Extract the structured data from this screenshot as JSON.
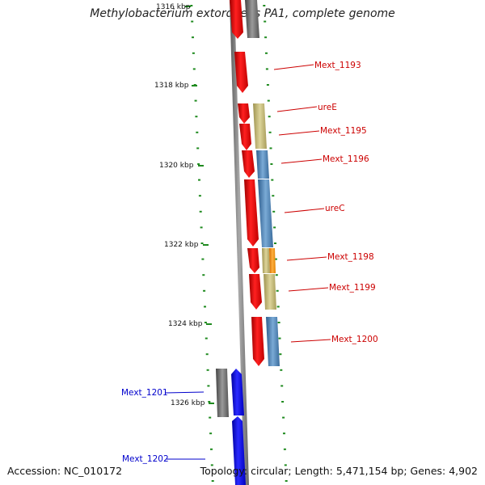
{
  "title": "Methylobacterium extorquens PA1, complete genome",
  "footer": {
    "accession": "Accession: NC_010172",
    "topology": "Topology: circular; Length: 5,471,154 bp; Genes: 4,902"
  },
  "ticks": [
    "1316 kbp",
    "1318 kbp",
    "1320 kbp",
    "1322 kbp",
    "1324 kbp",
    "1326 kbp"
  ],
  "colors": {
    "backbone": "#808080",
    "cds_red": "#ff0000",
    "cds_blue": "#0000ff",
    "label_red": "#cc0000",
    "label_blue": "#0000cc",
    "dot_green": "#1f8a1f",
    "gray_feature": "#777777",
    "tan_feature": "#c8bd74",
    "steel_feature": "#4f86b8",
    "orange_feature": "#ff9a10"
  },
  "labels": [
    {
      "id": "mext-1193",
      "text": "Mext_1193",
      "color": "red"
    },
    {
      "id": "uree",
      "text": "ureE",
      "color": "red"
    },
    {
      "id": "mext-1195",
      "text": "Mext_1195",
      "color": "red"
    },
    {
      "id": "mext-1196",
      "text": "Mext_1196",
      "color": "red"
    },
    {
      "id": "urec",
      "text": "ureC",
      "color": "red"
    },
    {
      "id": "mext-1198",
      "text": "Mext_1198",
      "color": "red"
    },
    {
      "id": "mext-1199",
      "text": "Mext_1199",
      "color": "red"
    },
    {
      "id": "mext-1200",
      "text": "Mext_1200",
      "color": "red"
    },
    {
      "id": "mext-1201",
      "text": "Mext_1201",
      "color": "blue"
    },
    {
      "id": "mext-1202",
      "text": "Mext_1202",
      "color": "blue"
    }
  ]
}
